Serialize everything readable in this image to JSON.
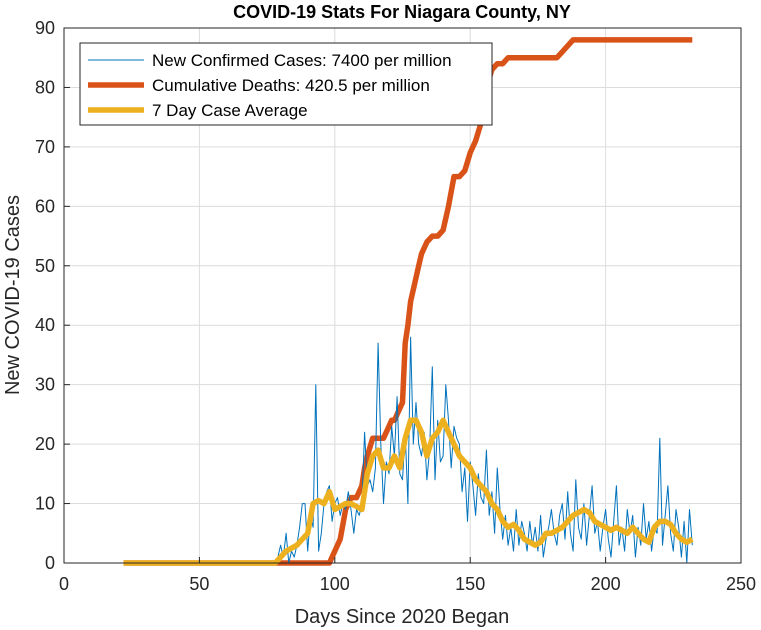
{
  "chart_data": {
    "type": "line",
    "title": "COVID-19 Stats For Niagara County, NY",
    "xlabel": "Days Since 2020 Began",
    "ylabel": "New COVID-19 Cases",
    "xlim": [
      0,
      250
    ],
    "ylim": [
      0,
      90
    ],
    "xticks": [
      0,
      50,
      100,
      150,
      200,
      250
    ],
    "yticks": [
      0,
      10,
      20,
      30,
      40,
      50,
      60,
      70,
      80,
      90
    ],
    "grid": true,
    "legend_position": "top-left",
    "series": [
      {
        "name": "New Confirmed Cases: 7400 per million",
        "color": "#0072BD",
        "style": "thin",
        "x": [
          22,
          30,
          40,
          50,
          60,
          70,
          78,
          79,
          80,
          81,
          82,
          83,
          84,
          85,
          86,
          87,
          88,
          89,
          90,
          91,
          92,
          93,
          94,
          95,
          96,
          97,
          98,
          99,
          100,
          101,
          102,
          103,
          104,
          105,
          106,
          107,
          108,
          109,
          110,
          111,
          112,
          113,
          114,
          115,
          116,
          117,
          118,
          119,
          120,
          121,
          122,
          123,
          124,
          125,
          126,
          127,
          128,
          129,
          130,
          131,
          132,
          133,
          134,
          135,
          136,
          137,
          138,
          139,
          140,
          141,
          142,
          143,
          144,
          145,
          146,
          147,
          148,
          149,
          150,
          151,
          152,
          153,
          154,
          155,
          156,
          157,
          158,
          159,
          160,
          161,
          162,
          163,
          164,
          165,
          166,
          167,
          168,
          169,
          170,
          171,
          172,
          173,
          174,
          175,
          176,
          177,
          178,
          179,
          180,
          181,
          182,
          183,
          184,
          185,
          186,
          187,
          188,
          189,
          190,
          191,
          192,
          193,
          194,
          195,
          196,
          197,
          198,
          199,
          200,
          201,
          202,
          203,
          204,
          205,
          206,
          207,
          208,
          209,
          210,
          211,
          212,
          213,
          214,
          215,
          216,
          217,
          218,
          219,
          220,
          221,
          222,
          223,
          224,
          225,
          226,
          227,
          228,
          229,
          230,
          231,
          232
        ],
        "values": [
          0,
          0,
          0,
          0,
          0,
          0,
          0,
          1,
          3,
          1,
          5,
          0,
          2,
          1,
          3,
          6,
          10,
          10,
          2,
          8,
          6,
          30,
          2,
          5,
          10,
          12,
          13,
          7,
          10,
          11,
          8,
          10,
          9,
          12,
          9,
          5,
          9,
          8,
          10,
          22,
          13,
          14,
          12,
          16,
          37,
          20,
          10,
          17,
          15,
          23,
          18,
          28,
          15,
          14,
          22,
          10,
          38,
          20,
          27,
          20,
          18,
          22,
          14,
          19,
          33,
          14,
          24,
          17,
          18,
          30,
          24,
          16,
          23,
          21,
          20,
          12,
          16,
          7,
          17,
          13,
          8,
          15,
          11,
          10,
          19,
          8,
          12,
          5,
          16,
          9,
          4,
          8,
          3,
          6,
          2,
          9,
          3,
          7,
          5,
          2,
          7,
          3,
          6,
          2,
          8,
          1,
          4,
          6,
          9,
          5,
          3,
          8,
          10,
          4,
          12,
          5,
          2,
          14,
          6,
          4,
          10,
          3,
          8,
          13,
          5,
          7,
          2,
          6,
          9,
          4,
          1,
          7,
          13,
          3,
          6,
          2,
          9,
          5,
          8,
          1,
          6,
          3,
          10,
          4,
          7,
          2,
          6,
          5,
          21,
          3,
          8,
          13,
          5,
          2,
          9,
          6,
          1,
          7,
          0,
          9,
          3
        ]
      },
      {
        "name": "Cumulative Deaths: 420.5 per million",
        "color": "#D95319",
        "style": "thick",
        "x": [
          22,
          98,
          100,
          102,
          104,
          106,
          108,
          110,
          111,
          112,
          114,
          116,
          118,
          119,
          120,
          121,
          122,
          123,
          124,
          125,
          126,
          127,
          128,
          129,
          130,
          131,
          132,
          134,
          136,
          138,
          140,
          142,
          144,
          146,
          148,
          150,
          152,
          154,
          156,
          158,
          160,
          162,
          164,
          166,
          168,
          170,
          172,
          174,
          176,
          178,
          180,
          182,
          184,
          186,
          188,
          190,
          192,
          194,
          196,
          198,
          200,
          202,
          204,
          206,
          208,
          210,
          212,
          214,
          216,
          218,
          220,
          222,
          224,
          226,
          228,
          230,
          232
        ],
        "values": [
          0,
          0,
          2,
          4,
          9,
          11,
          11,
          13,
          16,
          18,
          21,
          21,
          21,
          22,
          23,
          24,
          24,
          25,
          26,
          27,
          37,
          40,
          44,
          46,
          48,
          50,
          52,
          54,
          55,
          55,
          56,
          60,
          65,
          65,
          66,
          69,
          71,
          74,
          80,
          83,
          84,
          84,
          85,
          85,
          85,
          85,
          85,
          85,
          85,
          85,
          85,
          85,
          86,
          87,
          88,
          88,
          88,
          88,
          88,
          88,
          88,
          88,
          88,
          88,
          88,
          88,
          88,
          88,
          88,
          88,
          88,
          88,
          88,
          88,
          88,
          88,
          88
        ]
      },
      {
        "name": "7 Day Case Average",
        "color": "#EDB120",
        "style": "thick",
        "x": [
          22,
          30,
          40,
          50,
          60,
          70,
          78,
          80,
          82,
          84,
          86,
          88,
          90,
          92,
          94,
          96,
          98,
          100,
          102,
          104,
          106,
          108,
          110,
          112,
          114,
          116,
          118,
          120,
          122,
          124,
          126,
          128,
          130,
          132,
          134,
          136,
          138,
          140,
          142,
          144,
          146,
          148,
          150,
          152,
          154,
          156,
          158,
          160,
          162,
          164,
          166,
          168,
          170,
          172,
          174,
          176,
          178,
          180,
          182,
          184,
          186,
          188,
          190,
          192,
          194,
          196,
          198,
          200,
          202,
          204,
          206,
          208,
          210,
          212,
          214,
          216,
          218,
          220,
          222,
          224,
          226,
          228,
          230,
          232
        ],
        "values": [
          0,
          0,
          0,
          0,
          0,
          0,
          0,
          1,
          2,
          2.5,
          3,
          4,
          5,
          10,
          10.5,
          10,
          12,
          9,
          9.5,
          10,
          10,
          9.5,
          9,
          15,
          18,
          19,
          16,
          16,
          18,
          16,
          21,
          24,
          24,
          22,
          18,
          21,
          22,
          24,
          22,
          20,
          18,
          17,
          16,
          14,
          13,
          12,
          10,
          9,
          7,
          6,
          6.5,
          5.5,
          4,
          3.5,
          3,
          3.5,
          5,
          5,
          5.5,
          6,
          7,
          8,
          8.5,
          9,
          8.5,
          7,
          6.5,
          6,
          5.5,
          6,
          5.5,
          5,
          6,
          5,
          4,
          3.5,
          6,
          7,
          7,
          6.5,
          5,
          4,
          3.5,
          4
        ]
      }
    ]
  }
}
